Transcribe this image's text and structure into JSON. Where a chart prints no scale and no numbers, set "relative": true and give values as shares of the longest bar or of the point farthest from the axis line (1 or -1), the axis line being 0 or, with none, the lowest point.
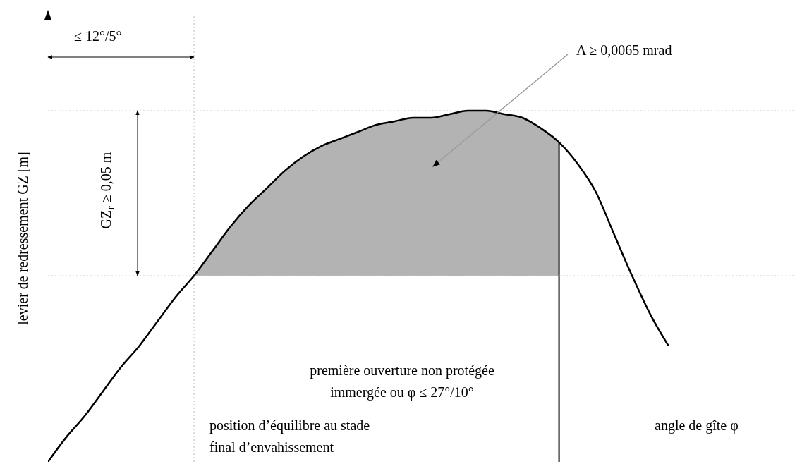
{
  "chart_data": {
    "type": "line",
    "relative": true,
    "xlabel": "angle de gîte φ",
    "ylabel": "levier de redressement GZ [m]",
    "categories": [
      null,
      null,
      null,
      null,
      null,
      null,
      null,
      null,
      null,
      null,
      null,
      null,
      null,
      null,
      null,
      null,
      null,
      null,
      null,
      null,
      null,
      null,
      null,
      null,
      null,
      null,
      null,
      null,
      null,
      null,
      null,
      null,
      null,
      null,
      null
    ],
    "series": [
      {
        "color": "#000000",
        "values": [
          0,
          0.07,
          0.13,
          0.2,
          0.27,
          0.33,
          0.4,
          0.47,
          0.53,
          0.6,
          0.67,
          0.73,
          0.78,
          0.83,
          0.87,
          0.9,
          0.92,
          0.94,
          0.96,
          0.97,
          0.98,
          0.98,
          0.99,
          1,
          1,
          0.99,
          0.98,
          0.95,
          0.91,
          0.85,
          0.77,
          0.65,
          0.53,
          0.42,
          0.33
        ],
        "lower": [
          null,
          null,
          null,
          null,
          null,
          null,
          null,
          null,
          0.53,
          0.53,
          0.53,
          0.53,
          0.53,
          0.53,
          0.53,
          0.53,
          0.53,
          0.53,
          0.53,
          0.53,
          0.53,
          0.53,
          0.53,
          0.53,
          0.53,
          0.53,
          0.53,
          0.53,
          0.53,
          null,
          null,
          null,
          null,
          null,
          null
        ],
        "upper": [
          null,
          null,
          null,
          null,
          null,
          null,
          null,
          null,
          0.53,
          0.6,
          0.67,
          0.73,
          0.78,
          0.83,
          0.87,
          0.9,
          0.92,
          0.94,
          0.96,
          0.97,
          0.98,
          0.98,
          0.99,
          1,
          1,
          0.99,
          0.98,
          0.95,
          0.91,
          null,
          null,
          null,
          null,
          null,
          null
        ]
      }
    ],
    "marker": "none",
    "line_style": "solid",
    "grid": false,
    "legend": false,
    "ref_lines": [
      {
        "axis": "y",
        "value": 0.53,
        "line_style": "dotted",
        "color": "#c8c8c8"
      },
      {
        "axis": "y",
        "value": 1,
        "line_style": "dotted",
        "color": "#c8c8c8"
      }
    ],
    "annotations": [
      "≤ 12°/5°",
      "A ≥ 0,0065 mrad",
      "GZ$_{r}$ ≥ 0,05 m",
      "première ouverture non protégée\nimmergée ou φ ≤ 27°/10°",
      "position d’équilibre au stade\nfinal d’envahissement"
    ]
  }
}
